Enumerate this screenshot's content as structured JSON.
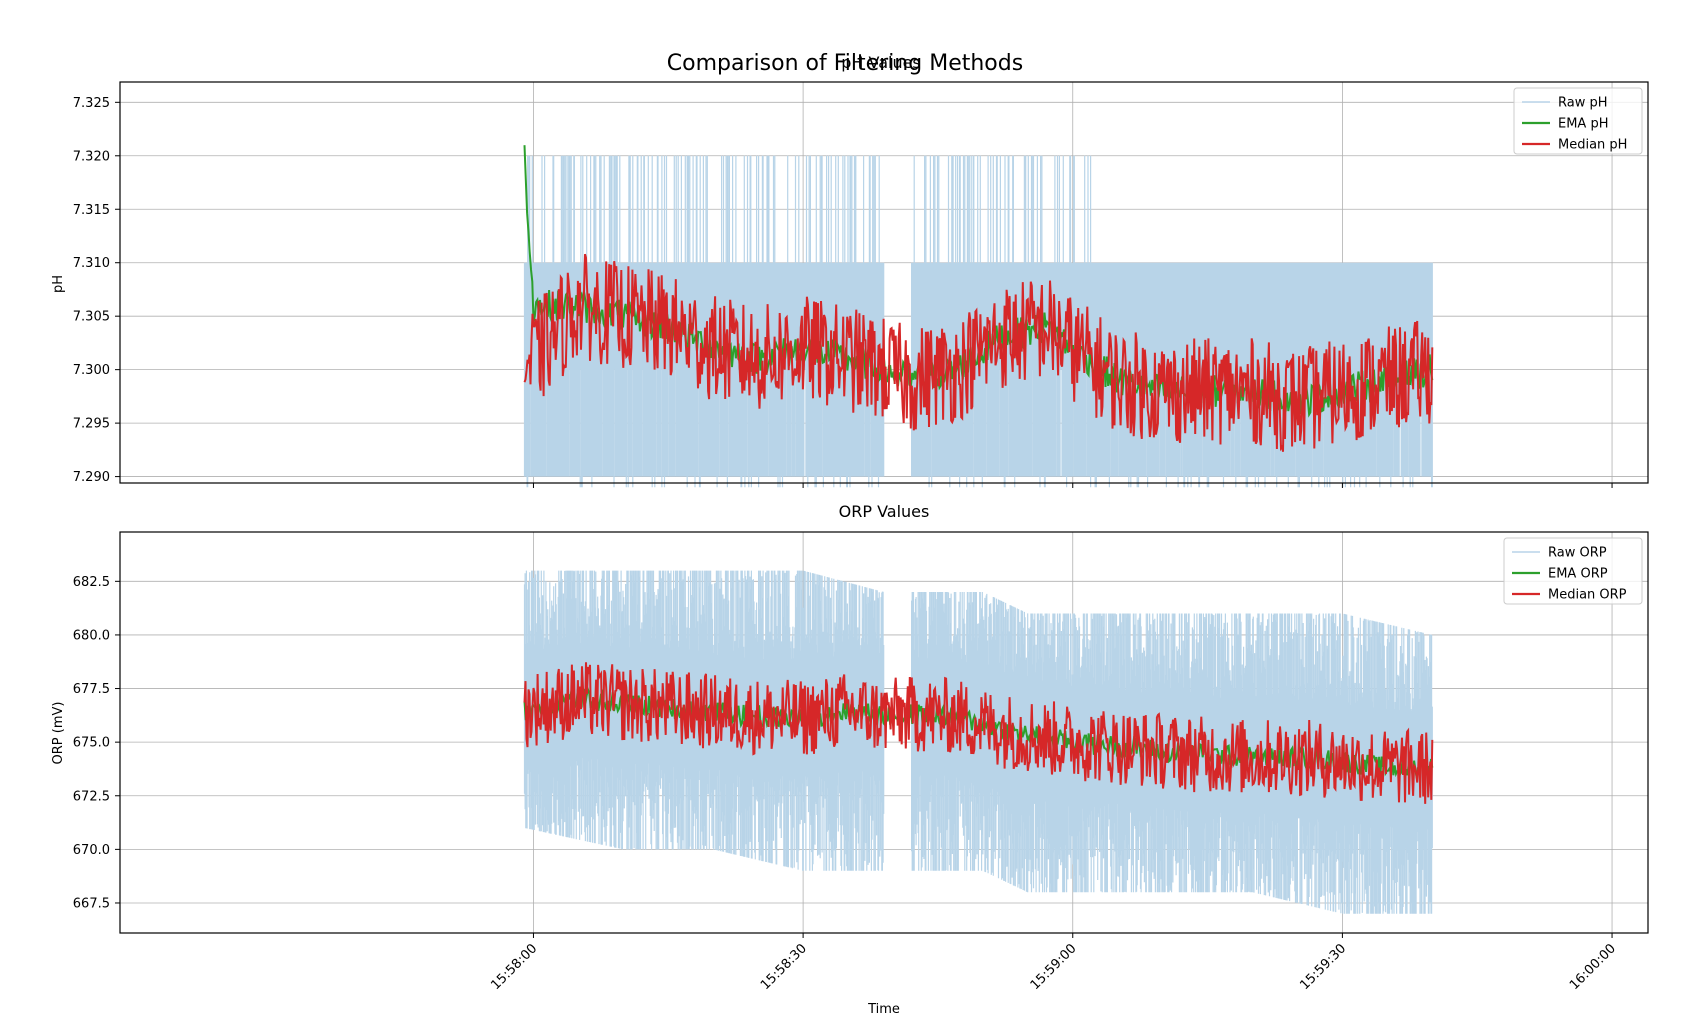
{
  "figure": {
    "title": "Comparison of Filtering Methods",
    "xlabel": "Time"
  },
  "colors": {
    "raw": "#b8d4e8",
    "ema": "#2ca02c",
    "median": "#d62728",
    "grid": "#b0b0b0",
    "axes": "#000000"
  },
  "chart_data": [
    {
      "type": "line",
      "title": "pH Values",
      "xlabel": "",
      "ylabel": "pH",
      "ylim": [
        7.2894,
        7.3269
      ],
      "xlim": [
        "15:57:14",
        "16:00:04"
      ],
      "yticks": [
        "7.290",
        "7.295",
        "7.300",
        "7.305",
        "7.310",
        "7.315",
        "7.320",
        "7.325"
      ],
      "ytick_values": [
        7.29,
        7.295,
        7.3,
        7.305,
        7.31,
        7.315,
        7.32,
        7.325
      ],
      "xticks": [
        "15:58:00",
        "15:58:30",
        "15:59:00",
        "15:59:30",
        "16:00:00"
      ],
      "grid": true,
      "legend_position": "top-right",
      "time_range": [
        "15:57:59",
        "15:59:40"
      ],
      "gap": [
        "15:58:39",
        "15:58:42"
      ],
      "series": [
        {
          "name": "Raw pH",
          "role": "raw",
          "band_range": [
            7.29,
            7.31
          ],
          "spike_max": 7.32,
          "spike_min": 7.289,
          "note_values": "raw readings oscillate between 7.290 and 7.310 with frequent spikes to 7.320 before 15:59:02"
        },
        {
          "name": "EMA pH",
          "role": "ema",
          "start_value": 7.32,
          "trend": [
            [
              "15:57:59",
              7.32
            ],
            [
              "15:58:00",
              7.306
            ],
            [
              "15:58:05",
              7.306
            ],
            [
              "15:58:10",
              7.305
            ],
            [
              "15:58:15",
              7.304
            ],
            [
              "15:58:20",
              7.302
            ],
            [
              "15:58:25",
              7.301
            ],
            [
              "15:58:30",
              7.302
            ],
            [
              "15:58:35",
              7.301
            ],
            [
              "15:58:39",
              7.3
            ],
            [
              "15:58:42",
              7.299
            ],
            [
              "15:58:47",
              7.3
            ],
            [
              "15:58:52",
              7.303
            ],
            [
              "15:58:57",
              7.304
            ],
            [
              "15:59:00",
              7.302
            ],
            [
              "15:59:05",
              7.299
            ],
            [
              "15:59:10",
              7.298
            ],
            [
              "15:59:15",
              7.298
            ],
            [
              "15:59:20",
              7.298
            ],
            [
              "15:59:25",
              7.297
            ],
            [
              "15:59:30",
              7.298
            ],
            [
              "15:59:35",
              7.299
            ],
            [
              "15:59:40",
              7.3
            ]
          ]
        },
        {
          "name": "Median pH",
          "role": "median",
          "band": [
            7.296,
            7.31
          ],
          "trend": [
            [
              "15:57:59",
              7.3
            ],
            [
              "15:58:05",
              7.306
            ],
            [
              "15:58:10",
              7.305
            ],
            [
              "15:58:15",
              7.304
            ],
            [
              "15:58:20",
              7.302
            ],
            [
              "15:58:25",
              7.301
            ],
            [
              "15:58:30",
              7.302
            ],
            [
              "15:58:35",
              7.301
            ],
            [
              "15:58:39",
              7.3
            ],
            [
              "15:58:42",
              7.299
            ],
            [
              "15:58:47",
              7.3
            ],
            [
              "15:58:52",
              7.303
            ],
            [
              "15:58:57",
              7.304
            ],
            [
              "15:59:00",
              7.302
            ],
            [
              "15:59:05",
              7.299
            ],
            [
              "15:59:10",
              7.298
            ],
            [
              "15:59:15",
              7.298
            ],
            [
              "15:59:20",
              7.298
            ],
            [
              "15:59:25",
              7.297
            ],
            [
              "15:59:30",
              7.298
            ],
            [
              "15:59:35",
              7.299
            ],
            [
              "15:59:40",
              7.3
            ]
          ]
        }
      ]
    },
    {
      "type": "line",
      "title": "ORP Values",
      "xlabel": "Time",
      "ylabel": "ORP (mV)",
      "ylim": [
        666.1,
        684.8
      ],
      "xlim": [
        "15:57:14",
        "16:00:04"
      ],
      "yticks": [
        "667.5",
        "670.0",
        "672.5",
        "675.0",
        "677.5",
        "680.0",
        "682.5"
      ],
      "ytick_values": [
        667.5,
        670.0,
        672.5,
        675.0,
        677.5,
        680.0,
        682.5
      ],
      "xticks": [
        "15:58:00",
        "15:58:30",
        "15:59:00",
        "15:59:30",
        "16:00:00"
      ],
      "grid": true,
      "legend_position": "top-right",
      "time_range": [
        "15:57:59",
        "15:59:40"
      ],
      "gap": [
        "15:58:39",
        "15:58:42"
      ],
      "series": [
        {
          "name": "Raw ORP",
          "role": "raw",
          "envelope": [
            [
              "15:57:59",
              671,
              683
            ],
            [
              "15:58:10",
              670,
              683
            ],
            [
              "15:58:20",
              670,
              683
            ],
            [
              "15:58:30",
              669,
              683
            ],
            [
              "15:58:39",
              669,
              682
            ],
            [
              "15:58:42",
              669,
              682
            ],
            [
              "15:58:50",
              669,
              682
            ],
            [
              "15:58:55",
              668,
              681
            ],
            [
              "15:59:00",
              668,
              681
            ],
            [
              "15:59:10",
              668,
              681
            ],
            [
              "15:59:20",
              668,
              681
            ],
            [
              "15:59:30",
              667,
              681
            ],
            [
              "15:59:40",
              667,
              680
            ]
          ]
        },
        {
          "name": "EMA ORP",
          "role": "ema",
          "trend": [
            [
              "15:57:59",
              676.5
            ],
            [
              "15:58:05",
              677.0
            ],
            [
              "15:58:10",
              676.8
            ],
            [
              "15:58:15",
              676.6
            ],
            [
              "15:58:20",
              676.4
            ],
            [
              "15:58:25",
              676.2
            ],
            [
              "15:58:30",
              676.1
            ],
            [
              "15:58:35",
              676.5
            ],
            [
              "15:58:39",
              676.2
            ],
            [
              "15:58:42",
              676.3
            ],
            [
              "15:58:47",
              676.2
            ],
            [
              "15:58:52",
              675.6
            ],
            [
              "15:58:57",
              675.2
            ],
            [
              "15:59:00",
              675.0
            ],
            [
              "15:59:05",
              674.8
            ],
            [
              "15:59:10",
              674.6
            ],
            [
              "15:59:15",
              674.4
            ],
            [
              "15:59:20",
              674.3
            ],
            [
              "15:59:25",
              674.3
            ],
            [
              "15:59:30",
              674.1
            ],
            [
              "15:59:35",
              673.8
            ],
            [
              "15:59:40",
              673.8
            ]
          ]
        },
        {
          "name": "Median ORP",
          "role": "median",
          "trend": [
            [
              "15:57:59",
              676.5
            ],
            [
              "15:58:05",
              677.0
            ],
            [
              "15:58:10",
              676.8
            ],
            [
              "15:58:15",
              676.6
            ],
            [
              "15:58:20",
              676.4
            ],
            [
              "15:58:25",
              676.2
            ],
            [
              "15:58:30",
              676.1
            ],
            [
              "15:58:35",
              676.5
            ],
            [
              "15:58:39",
              676.2
            ],
            [
              "15:58:42",
              676.3
            ],
            [
              "15:58:47",
              676.2
            ],
            [
              "15:58:52",
              675.6
            ],
            [
              "15:58:57",
              675.2
            ],
            [
              "15:59:00",
              675.0
            ],
            [
              "15:59:05",
              674.8
            ],
            [
              "15:59:10",
              674.6
            ],
            [
              "15:59:15",
              674.4
            ],
            [
              "15:59:20",
              674.3
            ],
            [
              "15:59:25",
              674.3
            ],
            [
              "15:59:30",
              674.1
            ],
            [
              "15:59:35",
              673.8
            ],
            [
              "15:59:40",
              673.8
            ]
          ]
        }
      ]
    }
  ]
}
